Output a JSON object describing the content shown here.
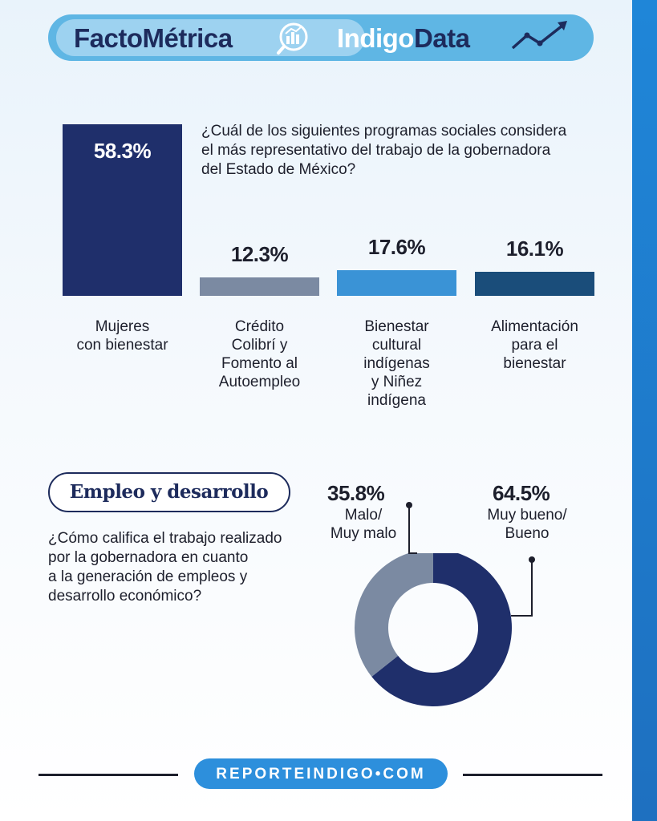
{
  "header": {
    "brand_left": "FactoMétrica",
    "brand_right_light": "Indigo",
    "brand_right_dark": "Data",
    "icons": [
      "chart-magnifier-icon",
      "trend-line-icon"
    ]
  },
  "chart_data": [
    {
      "type": "bar",
      "title": "¿Cuál de los siguientes programas sociales considera el más representativo del trabajo de la gobernadora del Estado de México?",
      "categories": [
        "Mujeres con bienestar",
        "Crédito Colibrí y Fomento al Autoempleo",
        "Bienestar cultural indígenas y Niñez indígena",
        "Alimentación para el bienestar"
      ],
      "category_lines": [
        [
          "Mujeres",
          "con bienestar"
        ],
        [
          "Crédito",
          "Colibrí y",
          "Fomento al",
          "Autoempleo"
        ],
        [
          "Bienestar",
          "cultural",
          "indígenas",
          "y Niñez",
          "indígena"
        ],
        [
          "Alimentación",
          "para el",
          "bienestar"
        ]
      ],
      "values": [
        58.3,
        12.3,
        17.6,
        16.1
      ],
      "value_labels": [
        "58.3%",
        "12.3%",
        "17.6%",
        "16.1%"
      ],
      "colors": [
        "#1f2f6b",
        "#7b8aa2",
        "#3a93d6",
        "#1a4d7a"
      ]
    },
    {
      "type": "pie",
      "title": "¿Cómo califica el trabajo realizado por la gobernadora en cuanto a la generación de empleos y desarrollo económico?",
      "categories": [
        "Malo/ Muy malo",
        "Muy bueno/ Bueno"
      ],
      "values": [
        35.8,
        64.5
      ],
      "value_labels": [
        "35.8%",
        "64.5%"
      ],
      "colors": [
        "#7b8aa2",
        "#1f2f6b"
      ]
    }
  ],
  "section": {
    "title": "Empleo y desarrollo",
    "question_lines": [
      "¿Cómo califica el trabajo realizado",
      "por la gobernadora en cuanto",
      "a la generación de empleos y",
      "desarrollo económico?"
    ]
  },
  "question1_lines": [
    "¿Cuál de los siguientes programas sociales considera",
    "el más representativo del trabajo de la gobernadora",
    "del Estado de México?"
  ],
  "donut_labels": {
    "left_value": "35.8%",
    "left_line1": "Malo/",
    "left_line2": "Muy malo",
    "right_value": "64.5%",
    "right_line1": "Muy bueno/",
    "right_line2": "Bueno"
  },
  "footer": {
    "text": "REPORTEINDIGO•COM"
  }
}
